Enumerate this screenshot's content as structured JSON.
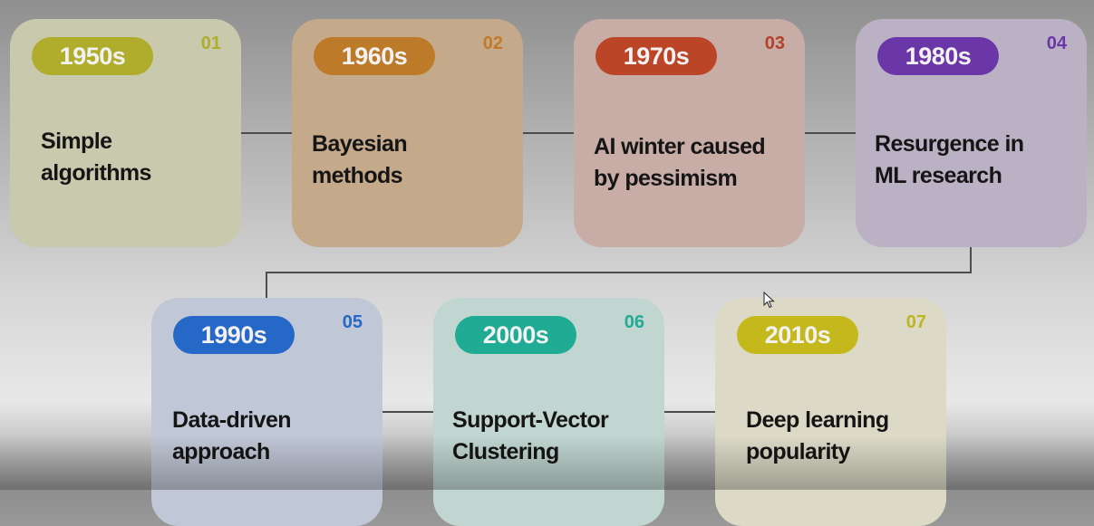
{
  "timeline": {
    "cards": [
      {
        "decade": "1950s",
        "number": "01",
        "description_lines": [
          "Simple",
          "algorithms"
        ],
        "pill_color": "#b0ad2c",
        "number_color": "#b0ad2c",
        "card_color": "#c9c9ae"
      },
      {
        "decade": "1960s",
        "number": "02",
        "description_lines": [
          "Bayesian",
          "methods"
        ],
        "pill_color": "#bd7a29",
        "number_color": "#c27a2a",
        "card_color": "#c4a98a"
      },
      {
        "decade": "1970s",
        "number": "03",
        "description_lines": [
          "AI winter caused",
          "by pessimism"
        ],
        "pill_color": "#bd4527",
        "number_color": "#b44028",
        "card_color": "#c7ada6"
      },
      {
        "decade": "1980s",
        "number": "04",
        "description_lines": [
          "Resurgence in",
          "ML research"
        ],
        "pill_color": "#6b36a8",
        "number_color": "#6b36a8",
        "card_color": "#bab1c4"
      },
      {
        "decade": "1990s",
        "number": "05",
        "description_lines": [
          "Data-driven",
          "approach"
        ],
        "pill_color": "#2568c8",
        "number_color": "#2568c8",
        "card_color": "#c0c7d6"
      },
      {
        "decade": "2000s",
        "number": "06",
        "description_lines": [
          "Support-Vector",
          "Clustering"
        ],
        "pill_color": "#1fab94",
        "number_color": "#1fab94",
        "card_color": "#c1d6d1"
      },
      {
        "decade": "2010s",
        "number": "07",
        "description_lines": [
          "Deep learning",
          "popularity"
        ],
        "pill_color": "#c4b81c",
        "number_color": "#bdb522",
        "card_color": "#dcdac7"
      }
    ]
  }
}
